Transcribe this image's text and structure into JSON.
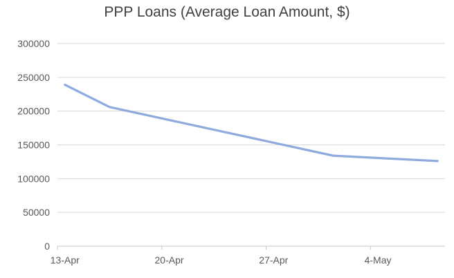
{
  "chart_data": {
    "type": "line",
    "title": "PPP Loans (Average Loan Amount, $)",
    "legend": "none",
    "grid": "horizontal",
    "x_axis": {
      "kind": "daily-category",
      "start_label": "13-Apr",
      "end_label": "8-May",
      "num_days": 26,
      "ticks": [
        {
          "label": "13-Apr",
          "day_index": 0
        },
        {
          "label": "20-Apr",
          "day_index": 7
        },
        {
          "label": "27-Apr",
          "day_index": 14
        },
        {
          "label": "4-May",
          "day_index": 21
        }
      ]
    },
    "y_axis": {
      "min": 0,
      "max": 300000,
      "step": 50000,
      "tick_labels": [
        "0",
        "50000",
        "100000",
        "150000",
        "200000",
        "250000",
        "300000"
      ]
    },
    "series": [
      {
        "name": "Average Loan Amount ($)",
        "points": [
          {
            "x": "13-Apr",
            "day_index": 0,
            "value": 239000
          },
          {
            "x": "16-Apr",
            "day_index": 3,
            "value": 206000
          },
          {
            "x": "1-May",
            "day_index": 18,
            "value": 134000
          },
          {
            "x": "8-May",
            "day_index": 25,
            "value": 126000
          }
        ]
      }
    ],
    "colors": {
      "line": "#8FAADC",
      "title": "#404040",
      "axis_label": "#595959",
      "gridline": "#D9D9D9",
      "axis_line": "#C6C6C6",
      "background": "#FFFFFF"
    }
  }
}
